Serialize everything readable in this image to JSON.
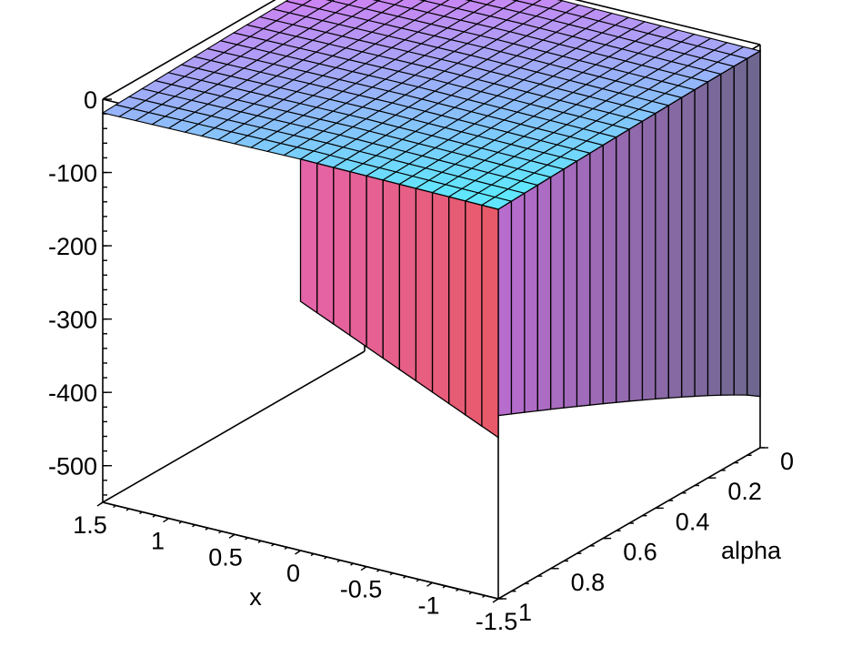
{
  "chart_data": {
    "type": "surface3d",
    "title": "",
    "x_axis": {
      "label": "x",
      "range": [
        -1.5,
        1.5
      ],
      "ticks": [
        "1.5",
        "1",
        "0.5",
        "0",
        "-0.5",
        "-1",
        "-1.5"
      ]
    },
    "alpha_axis": {
      "label": "alpha",
      "range": [
        0,
        1
      ],
      "ticks": [
        "0",
        "0.2",
        "0.4",
        "0.6",
        "0.8",
        "1"
      ]
    },
    "z_axis": {
      "label": "",
      "range": [
        -550,
        0
      ],
      "ticks": [
        "0",
        "-100",
        "-200",
        "-300",
        "-400",
        "-500"
      ]
    },
    "surface": {
      "description_values": "z is roughly 0 over most of the domain, sharply dropping to about -480 at alpha = 0 along the x = -1.5 edge",
      "plateau_z": 0,
      "edge_alpha0_z_min": -480,
      "grid_x_steps": 24,
      "grid_alpha_steps": 20
    },
    "colors": {
      "surface_low": "#e85a6a",
      "surface_high": "#e070f0",
      "surface_mid": "#60e6ff",
      "edge_dark": "#4a6470"
    }
  }
}
